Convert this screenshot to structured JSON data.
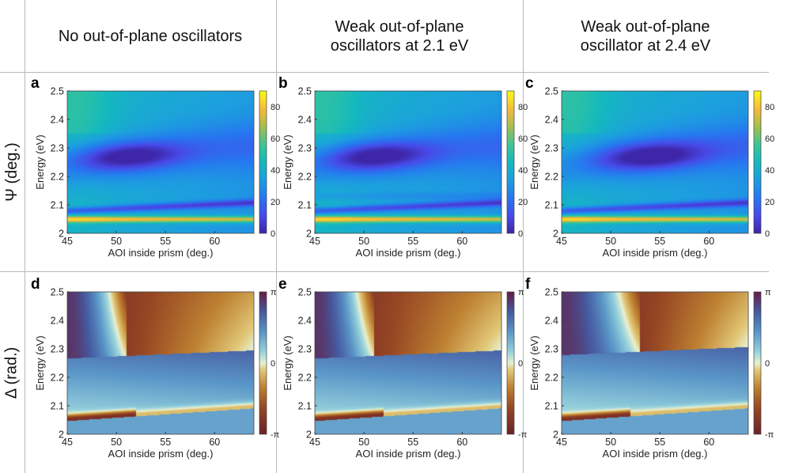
{
  "column_headers": [
    "No out-of-plane oscillators",
    "Weak out-of-plane\noscillators at 2.1 eV",
    "Weak out-of-plane\noscillator at 2.4 eV"
  ],
  "row_headers": [
    "Ψ (deg.)",
    "Δ (rad.)"
  ],
  "chart_data": [
    {
      "panel": "a",
      "type": "heatmap",
      "quantity": "psi",
      "case": "none",
      "xlabel": "AOI inside prism (deg.)",
      "ylabel": "Energy (eV)",
      "xlim": [
        45,
        64
      ],
      "ylim": [
        2,
        2.5
      ],
      "xticks": [
        "45",
        "50",
        "55",
        "60"
      ],
      "yticks": [
        "2",
        "2.1",
        "2.2",
        "2.3",
        "2.4",
        "2.5"
      ],
      "colorbar": {
        "range": [
          0,
          90
        ],
        "ticks": [
          "0",
          "20",
          "40",
          "60",
          "80"
        ]
      }
    },
    {
      "panel": "b",
      "type": "heatmap",
      "quantity": "psi",
      "case": "weak_2.1eV",
      "xlabel": "AOI inside prism (deg.)",
      "ylabel": "Energy (eV)",
      "xlim": [
        45,
        64
      ],
      "ylim": [
        2,
        2.5
      ],
      "xticks": [
        "45",
        "50",
        "55",
        "60"
      ],
      "yticks": [
        "2",
        "2.1",
        "2.2",
        "2.3",
        "2.4",
        "2.5"
      ],
      "colorbar": {
        "range": [
          0,
          90
        ],
        "ticks": [
          "0",
          "20",
          "40",
          "60",
          "80"
        ]
      }
    },
    {
      "panel": "c",
      "type": "heatmap",
      "quantity": "psi",
      "case": "weak_2.4eV",
      "xlabel": "AOI inside prism (deg.)",
      "ylabel": "Energy (eV)",
      "xlim": [
        45,
        64
      ],
      "ylim": [
        2,
        2.5
      ],
      "xticks": [
        "45",
        "50",
        "55",
        "60"
      ],
      "yticks": [
        "2",
        "2.1",
        "2.2",
        "2.3",
        "2.4",
        "2.5"
      ],
      "colorbar": {
        "range": [
          0,
          90
        ],
        "ticks": [
          "0",
          "20",
          "40",
          "60",
          "80"
        ]
      }
    },
    {
      "panel": "d",
      "type": "heatmap",
      "quantity": "delta",
      "case": "none",
      "xlabel": "AOI inside prism (deg.)",
      "ylabel": "Energy (eV)",
      "xlim": [
        45,
        64
      ],
      "ylim": [
        2,
        2.5
      ],
      "xticks": [
        "45",
        "50",
        "55",
        "60"
      ],
      "yticks": [
        "2",
        "2.1",
        "2.2",
        "2.3",
        "2.4",
        "2.5"
      ],
      "colorbar": {
        "range": [
          -3.1416,
          3.1416
        ],
        "ticks": [
          "-π",
          "0",
          "π"
        ]
      }
    },
    {
      "panel": "e",
      "type": "heatmap",
      "quantity": "delta",
      "case": "weak_2.1eV",
      "xlabel": "AOI inside prism (deg.)",
      "ylabel": "Energy (eV)",
      "xlim": [
        45,
        64
      ],
      "ylim": [
        2,
        2.5
      ],
      "xticks": [
        "45",
        "50",
        "55",
        "60"
      ],
      "yticks": [
        "2",
        "2.1",
        "2.2",
        "2.3",
        "2.4",
        "2.5"
      ],
      "colorbar": {
        "range": [
          -3.1416,
          3.1416
        ],
        "ticks": [
          "-π",
          "0",
          "π"
        ]
      }
    },
    {
      "panel": "f",
      "type": "heatmap",
      "quantity": "delta",
      "case": "weak_2.4eV",
      "xlabel": "AOI inside prism (deg.)",
      "ylabel": "Energy (eV)",
      "xlim": [
        45,
        64
      ],
      "ylim": [
        2,
        2.5
      ],
      "xticks": [
        "45",
        "50",
        "55",
        "60"
      ],
      "yticks": [
        "2",
        "2.1",
        "2.2",
        "2.3",
        "2.4",
        "2.5"
      ],
      "colorbar": {
        "range": [
          -3.1416,
          3.1416
        ],
        "ticks": [
          "-π",
          "0",
          "π"
        ]
      }
    }
  ]
}
